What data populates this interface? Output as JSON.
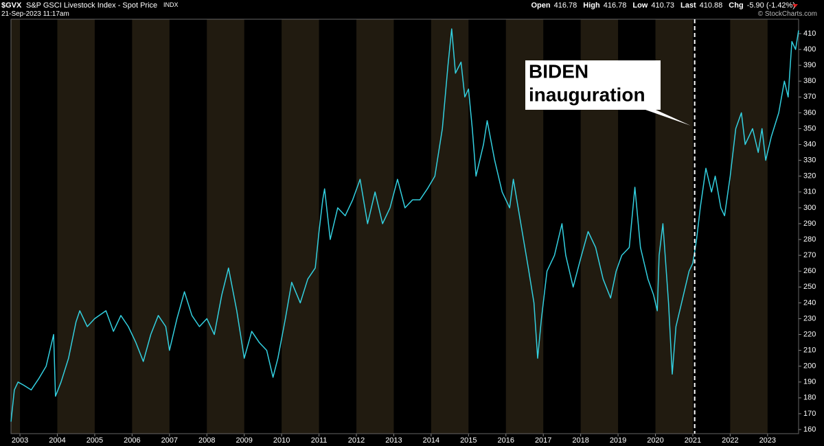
{
  "header": {
    "symbol": "$GVX",
    "name": "S&P GSCI Livestock Index - Spot Price",
    "exchange": "INDX",
    "date": "21-Sep-2023 11:17am",
    "quote": [
      {
        "label": "Open",
        "value": "416.78"
      },
      {
        "label": "High",
        "value": "416.78"
      },
      {
        "label": "Low",
        "value": "410.73"
      },
      {
        "label": "Last",
        "value": "410.88"
      },
      {
        "label": "Chg",
        "value": "-5.90 (-1.42%)"
      }
    ],
    "copyright": "© StockCharts.com"
  },
  "chart_data": {
    "type": "line",
    "x": [
      2002.76,
      2002.85,
      2002.95,
      2003.1,
      2003.3,
      2003.5,
      2003.7,
      2003.9,
      2003.95,
      2004.1,
      2004.3,
      2004.5,
      2004.6,
      2004.8,
      2005.0,
      2005.3,
      2005.5,
      2005.7,
      2005.9,
      2006.1,
      2006.3,
      2006.5,
      2006.7,
      2006.9,
      2007.0,
      2007.2,
      2007.4,
      2007.6,
      2007.8,
      2008.0,
      2008.2,
      2008.4,
      2008.58,
      2008.8,
      2009.0,
      2009.2,
      2009.4,
      2009.6,
      2009.77,
      2009.9,
      2010.1,
      2010.27,
      2010.5,
      2010.7,
      2010.9,
      2011.0,
      2011.1,
      2011.15,
      2011.3,
      2011.5,
      2011.7,
      2011.9,
      2012.1,
      2012.3,
      2012.5,
      2012.7,
      2012.9,
      2013.1,
      2013.3,
      2013.5,
      2013.7,
      2013.9,
      2014.1,
      2014.3,
      2014.45,
      2014.55,
      2014.65,
      2014.8,
      2014.9,
      2015.0,
      2015.1,
      2015.2,
      2015.4,
      2015.5,
      2015.7,
      2015.9,
      2016.1,
      2016.2,
      2016.4,
      2016.6,
      2016.75,
      2016.85,
      2016.95,
      2017.1,
      2017.3,
      2017.5,
      2017.6,
      2017.8,
      2018.0,
      2018.2,
      2018.4,
      2018.6,
      2018.8,
      2018.95,
      2019.1,
      2019.3,
      2019.45,
      2019.6,
      2019.8,
      2019.95,
      2020.05,
      2020.1,
      2020.2,
      2020.35,
      2020.45,
      2020.55,
      2020.7,
      2020.9,
      2021.0,
      2021.1,
      2021.2,
      2021.35,
      2021.5,
      2021.6,
      2021.75,
      2021.85,
      2022.0,
      2022.15,
      2022.3,
      2022.4,
      2022.6,
      2022.75,
      2022.85,
      2022.95,
      2023.1,
      2023.3,
      2023.45,
      2023.55,
      2023.65,
      2023.75,
      2023.83
    ],
    "series": [
      {
        "name": "$GVX",
        "color": "#33d0e0",
        "values": [
          165,
          185,
          190,
          188,
          185,
          192,
          200,
          220,
          181,
          190,
          205,
          228,
          235,
          225,
          230,
          235,
          222,
          232,
          225,
          215,
          203,
          220,
          232,
          225,
          210,
          230,
          247,
          232,
          225,
          230,
          220,
          245,
          262,
          235,
          205,
          222,
          215,
          210,
          193,
          205,
          230,
          253,
          240,
          255,
          262,
          285,
          305,
          312,
          280,
          300,
          295,
          305,
          318,
          290,
          310,
          290,
          300,
          318,
          300,
          305,
          305,
          312,
          320,
          350,
          390,
          413,
          385,
          392,
          370,
          375,
          350,
          320,
          340,
          355,
          330,
          310,
          300,
          318,
          290,
          262,
          240,
          205,
          230,
          260,
          270,
          290,
          270,
          250,
          268,
          285,
          275,
          255,
          243,
          260,
          270,
          275,
          313,
          275,
          255,
          245,
          235,
          270,
          290,
          240,
          195,
          225,
          240,
          260,
          265,
          280,
          300,
          325,
          310,
          320,
          300,
          295,
          320,
          350,
          360,
          340,
          350,
          335,
          350,
          330,
          345,
          360,
          380,
          370,
          405,
          400,
          412
        ]
      }
    ],
    "xlim": [
      2002.76,
      2023.83
    ],
    "xticks": [
      2003,
      2004,
      2005,
      2006,
      2007,
      2008,
      2009,
      2010,
      2011,
      2012,
      2013,
      2014,
      2015,
      2016,
      2017,
      2018,
      2019,
      2020,
      2021,
      2022,
      2023
    ],
    "ylim": [
      157.4,
      419.1
    ],
    "yticks": [
      160,
      170,
      180,
      190,
      200,
      210,
      220,
      230,
      240,
      250,
      260,
      270,
      280,
      290,
      300,
      310,
      320,
      330,
      340,
      350,
      360,
      370,
      380,
      390,
      400,
      410
    ],
    "band_color": "#211b10",
    "annotation": {
      "lines": [
        "BIDEN",
        "inauguration"
      ],
      "x": 2021.05
    }
  }
}
